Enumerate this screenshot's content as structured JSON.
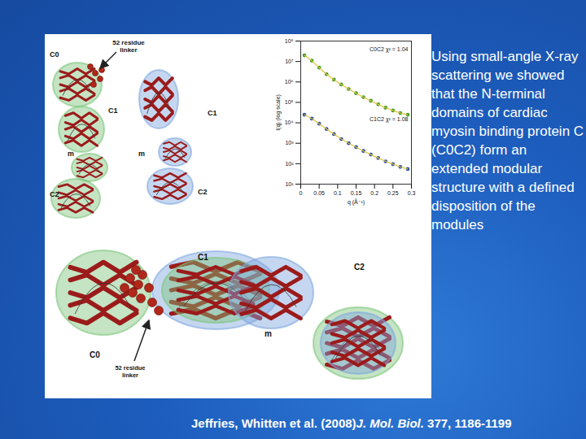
{
  "slide": {
    "body": "Using small-angle X-ray scattering we showed that the N-terminal domains of cardiac myosin binding protein C (C0C2) form an extended modular structure with a defined disposition of the modules",
    "citation": {
      "authors": "Jeffries, Whitten et al. (2008)",
      "journal": "J. Mol. Biol.",
      "reference": "377, 1186-1199"
    }
  },
  "figure": {
    "top_left": {
      "labels": [
        "C0",
        "C1",
        "m",
        "C2"
      ],
      "linker": [
        "52 residue",
        "linker"
      ]
    },
    "top_middle": {
      "labels": [
        "C1",
        "m",
        "C2"
      ]
    },
    "bottom": {
      "labels": [
        "C0",
        "C1",
        "m",
        "C2"
      ],
      "linker": [
        "52 residue",
        "linker"
      ]
    }
  },
  "chart_data": {
    "type": "scatter",
    "x": [
      0.01,
      0.03,
      0.05,
      0.07,
      0.09,
      0.11,
      0.13,
      0.15,
      0.17,
      0.19,
      0.21,
      0.23,
      0.25,
      0.27,
      0.29
    ],
    "series": [
      {
        "name": "C0C2 χ² = 1.04",
        "color": "#3a9a2a",
        "marker": "dot",
        "line_style": "solid",
        "values": [
          20000000,
          11000000,
          5000000,
          2400000,
          1300000,
          750000,
          450000,
          280000,
          180000,
          120000,
          80000,
          55000,
          40000,
          30000,
          25000
        ]
      },
      {
        "name": "C1C2 χ² = 1.08",
        "color": "#2a4fa8",
        "marker": "dot",
        "line_style": "solid",
        "values": [
          25000,
          16000,
          9000,
          5000,
          2800,
          1600,
          1000,
          650,
          420,
          280,
          190,
          130,
          95,
          70,
          55
        ]
      }
    ],
    "xlabel": "q (Å⁻¹)",
    "ylabel": "I(q) (log scale)",
    "log": "y",
    "xlim": [
      0,
      0.3
    ],
    "ylim": [
      10,
      100000000
    ],
    "xticks": [
      0,
      0.05,
      0.1,
      0.15,
      0.2,
      0.25,
      0.3
    ],
    "yticks": [
      {
        "value": 10,
        "label": "10¹"
      },
      {
        "value": 100,
        "label": "10²"
      },
      {
        "value": 1000,
        "label": "10³"
      },
      {
        "value": 10000,
        "label": "10⁴"
      },
      {
        "value": 100000,
        "label": "10⁵"
      },
      {
        "value": 1000000,
        "label": "10⁶"
      },
      {
        "value": 10000000,
        "label": "10⁷"
      },
      {
        "value": 100000000,
        "label": "10⁸"
      }
    ]
  }
}
